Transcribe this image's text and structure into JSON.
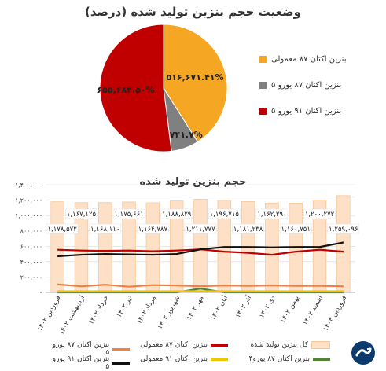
{
  "pie": {
    "title": "وضعیت حجم بنزین تولید شده (درصد)",
    "legend": [
      {
        "label": "بنزین اکتان ۸۷ معمولی",
        "color": "#f5a623"
      },
      {
        "label": "بنزین اکتان ۸۷ یورو ۵",
        "color": "#808080"
      },
      {
        "label": "بنزین اکتان ۹۱ یورو ۵",
        "color": "#c00000"
      }
    ],
    "slice_labels": [
      "۵۱۶,۶۷۱.۴۱%",
      "۸۶,۷۴۱.۷%",
      "۶۵۵,۶۸۴.۵۰%"
    ]
  },
  "bar": {
    "title": "حجم بنزین تولید شده",
    "legend": [
      {
        "label": "کل بنزین تولید شده",
        "kind": "box",
        "color": "#f8c79a"
      },
      {
        "label": "بنزین اکتان ۸۷ معمولی",
        "kind": "line",
        "color": "#c00000"
      },
      {
        "label": "بنزین اکتان ۸۷ یورو ۵",
        "kind": "line",
        "color": "#f08040"
      },
      {
        "label": "بنزین اکتان ۸۷ یورو۴",
        "kind": "line",
        "color": "#548235"
      },
      {
        "label": "بنزین اکتان ۹۱ معمولی",
        "kind": "line",
        "color": "#f2c500"
      },
      {
        "label": "بنزین اکتان ۹۱ یورو ۵",
        "kind": "line",
        "color": "#111111"
      }
    ]
  },
  "chart_data": [
    {
      "type": "pie",
      "title": "وضعیت حجم بنزین تولید شده (درصد)",
      "slices": [
        {
          "name": "بنزین اکتان ۸۷ معمولی",
          "value": 41,
          "label": "۵۱۶,۶۷۱.۴۱%",
          "color": "#f5a623"
        },
        {
          "name": "بنزین اکتان ۸۷ یورو ۵",
          "value": 7,
          "label": "۸۶,۷۴۱.۷%",
          "color": "#808080"
        },
        {
          "name": "بنزین اکتان ۹۱ یورو ۵",
          "value": 52,
          "label": "۶۵۵,۶۸۴.۵۰%",
          "color": "#c00000"
        }
      ]
    },
    {
      "type": "bar",
      "title": "حجم بنزین تولید شده",
      "categories": [
        "فروردین ۱۴۰۲",
        "اردیبهشت ۱۴۰۲",
        "خرداد ۱۴۰۲",
        "تیر ۱۴۰۲",
        "مرداد ۱۴۰۲",
        "شهریور ۱۴۰۲",
        "مهر ۱۴۰۲",
        "آبان ۱۴۰۲",
        "آذر ۱۴۰۲",
        "دی ۱۴۰۲",
        "بهمن ۱۴۰۲",
        "اسفند ۱۴۰۲",
        "فروردین ۱۴۰۳"
      ],
      "yticks": [
        "۰",
        "۲۰۰,۰۰۰",
        "۴۰۰,۰۰۰",
        "۶۰۰,۰۰۰",
        "۸۰۰,۰۰۰",
        "۱,۰۰۰,۰۰۰",
        "۱,۲۰۰,۰۰۰",
        "۱,۴۰۰,۰۰۰"
      ],
      "ylim": [
        0,
        1400000
      ],
      "series": [
        {
          "name": "کل بنزین تولید شده",
          "kind": "bar",
          "color": "#f8c79a",
          "values": [
            1178572,
            1167125,
            1168110,
            1175661,
            1164787,
            1188829,
            1211777,
            1196715,
            1181238,
            1162390,
            1160751,
            1200272,
            1259096
          ],
          "labels": [
            "۱,۱۷۸,۵۷۲",
            "۱,۱۶۷,۱۲۵",
            "۱,۱۶۸,۱۱۰",
            "۱,۱۷۵,۶۶۱",
            "۱,۱۶۴,۷۸۷",
            "۱,۱۸۸,۸۲۹",
            "۱,۲۱۱,۷۷۷",
            "۱,۱۹۶,۷۱۵",
            "۱,۱۸۱,۲۳۸",
            "۱,۱۶۲,۳۹۰",
            "۱,۱۶۰,۷۵۱",
            "۱,۲۰۰,۲۷۲",
            "۱,۲۵۹,۰۹۶"
          ]
        },
        {
          "name": "بنزین اکتان ۸۷ معمولی",
          "kind": "line",
          "color": "#c00000",
          "values": [
            555000,
            545000,
            540000,
            545000,
            535000,
            545000,
            560000,
            530000,
            515000,
            490000,
            530000,
            555000,
            530000
          ]
        },
        {
          "name": "بنزین اکتان ۸۷ یورو ۵",
          "kind": "line",
          "color": "#f08040",
          "values": [
            105000,
            80000,
            100000,
            75000,
            95000,
            90000,
            80000,
            90000,
            85000,
            90000,
            85000,
            85000,
            80000
          ]
        },
        {
          "name": "بنزین اکتان ۸۷ یورو۴",
          "kind": "line",
          "color": "#548235",
          "values": [
            0,
            0,
            0,
            0,
            0,
            0,
            50000,
            0,
            0,
            0,
            0,
            0,
            0
          ]
        },
        {
          "name": "بنزین اکتان ۹۱ معمولی",
          "kind": "line",
          "color": "#f2c500",
          "values": [
            15000,
            15000,
            15000,
            15000,
            15000,
            15000,
            15000,
            15000,
            15000,
            15000,
            15000,
            15000,
            15000
          ]
        },
        {
          "name": "بنزین اکتان ۹۱ یورو ۵",
          "kind": "line",
          "color": "#111111",
          "values": [
            470000,
            490000,
            500000,
            495000,
            490000,
            500000,
            560000,
            590000,
            590000,
            585000,
            590000,
            590000,
            650000
          ]
        }
      ]
    }
  ]
}
